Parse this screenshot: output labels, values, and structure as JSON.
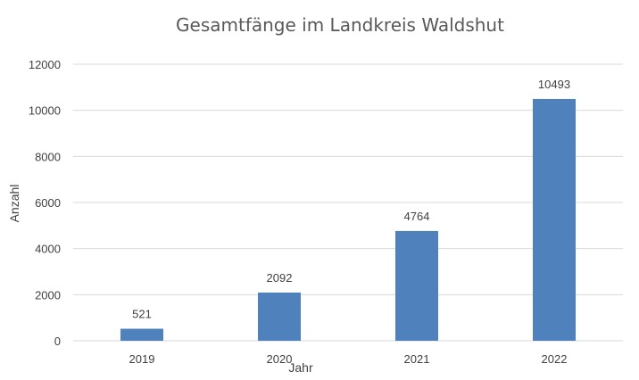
{
  "chart_data": {
    "type": "bar",
    "title": "Gesamtfänge im Landkreis Waldshut",
    "xlabel": "Jahr",
    "ylabel": "Anzahl",
    "categories": [
      "2019",
      "2020",
      "2021",
      "2022"
    ],
    "values": [
      521,
      2092,
      4764,
      10493
    ],
    "data_labels": [
      "521",
      "2092",
      "4764",
      "10493"
    ],
    "ylim": [
      0,
      12000
    ],
    "yticks": [
      0,
      2000,
      4000,
      6000,
      8000,
      10000,
      12000
    ],
    "ytick_labels": [
      "0",
      "2000",
      "4000",
      "6000",
      "8000",
      "10000",
      "12000"
    ],
    "grid": true,
    "legend": "none",
    "bar_color": "#4f81bd"
  }
}
